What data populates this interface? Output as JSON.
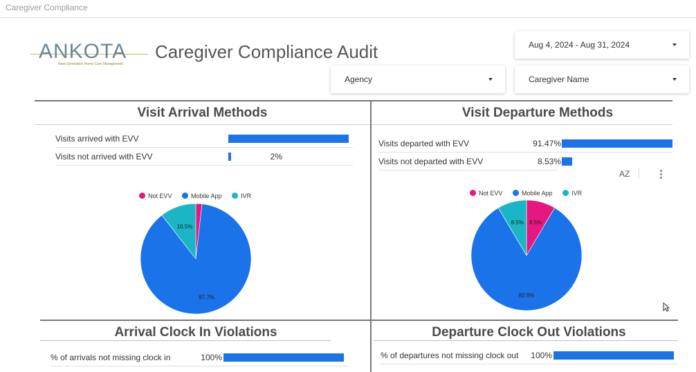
{
  "tab_title": "Caregiver Compliance",
  "logo": {
    "text": "ANKOTA",
    "tagline": "Next Generation Home Care Management"
  },
  "page_title": "Caregiver Compliance Audit",
  "filters": {
    "date_range": "Aug 4, 2024 - Aug 31, 2024",
    "agency": "Agency",
    "caregiver": "Caregiver Name"
  },
  "colors": {
    "bar": "#1a73e8",
    "not_evv": "#e6177f",
    "mobile_app": "#1a73e8",
    "ivr": "#1bb6c6"
  },
  "arrival": {
    "title": "Visit Arrival Methods",
    "rows": [
      {
        "label": "Visits arrived with EVV",
        "value": "98%",
        "pct": 98
      },
      {
        "label": "Visits not arrived with EVV",
        "value": "2%",
        "pct": 2
      }
    ],
    "legend": [
      "Not EVV",
      "Mobile App",
      "IVR"
    ]
  },
  "departure": {
    "title": "Visit Departure Methods",
    "rows": [
      {
        "label": "Visits departed with EVV",
        "value": "91.47%",
        "pct": 91.47
      },
      {
        "label": "Visits not departed with EVV",
        "value": "8.53%",
        "pct": 8.53
      }
    ],
    "legend": [
      "Not EVV",
      "Mobile App",
      "IVR"
    ],
    "sort_icon": "AZ",
    "more_icon": "⋮"
  },
  "arrival_violations": {
    "title": "Arrival Clock In Violations",
    "row": {
      "label": "% of arrivals not missing clock in",
      "value": "100%",
      "pct": 100
    }
  },
  "departure_violations": {
    "title": "Departure Clock Out Violations",
    "row": {
      "label": "% of departures not missing clock out",
      "value": "100%",
      "pct": 100
    }
  },
  "chart_data": [
    {
      "type": "pie",
      "categories": [
        "Not EVV",
        "Mobile App",
        "IVR"
      ],
      "values": [
        1.8,
        87.7,
        10.5
      ],
      "labels": [
        "",
        "87.7%",
        "10.5%"
      ]
    },
    {
      "type": "pie",
      "categories": [
        "Not EVV",
        "Mobile App",
        "IVR"
      ],
      "values": [
        8.5,
        82.9,
        8.5
      ],
      "labels": [
        "8.5%",
        "82.9%",
        "8.5%"
      ]
    }
  ]
}
